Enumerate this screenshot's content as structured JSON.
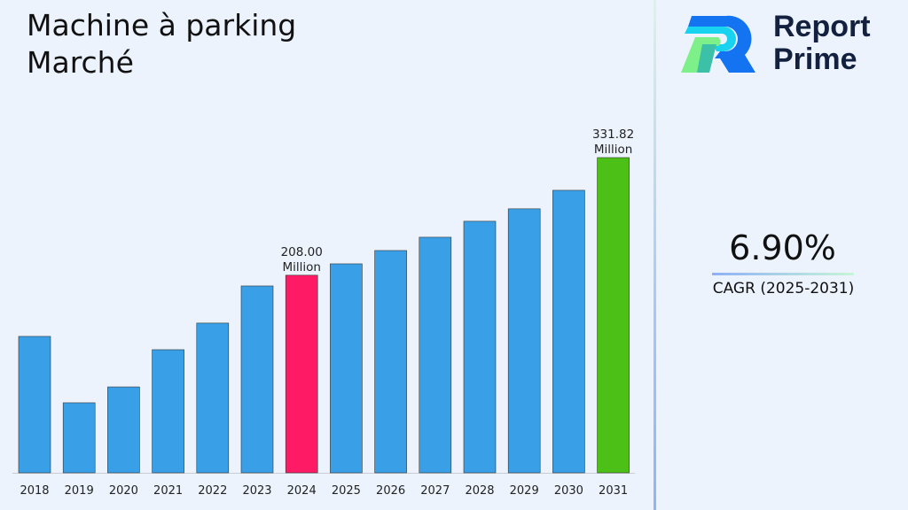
{
  "title": [
    "Machine à parking",
    "Marché"
  ],
  "logo": {
    "line1": "Report",
    "line2": "Prime"
  },
  "cagr": {
    "value": "6.90%",
    "label": "CAGR (2025-2031)"
  },
  "chart_data": {
    "type": "bar",
    "categories": [
      "2018",
      "2019",
      "2020",
      "2021",
      "2022",
      "2023",
      "2024",
      "2025",
      "2026",
      "2027",
      "2028",
      "2029",
      "2030",
      "2031"
    ],
    "values": [
      143.6,
      73.7,
      90.4,
      129.6,
      157.6,
      196.7,
      208.0,
      220.0,
      234.0,
      248.0,
      264.8,
      277.9,
      297.4,
      331.82
    ],
    "unit": "Million",
    "data_labels": {
      "2024": [
        "208.00",
        "Million"
      ],
      "2031": [
        "331.82",
        "Million"
      ]
    },
    "colors": {
      "default": "#39a0e8",
      "2024": "#ff1a66",
      "2031": "#4cc016"
    },
    "ylim": [
      0,
      340
    ],
    "grid": false,
    "legend": "none"
  }
}
